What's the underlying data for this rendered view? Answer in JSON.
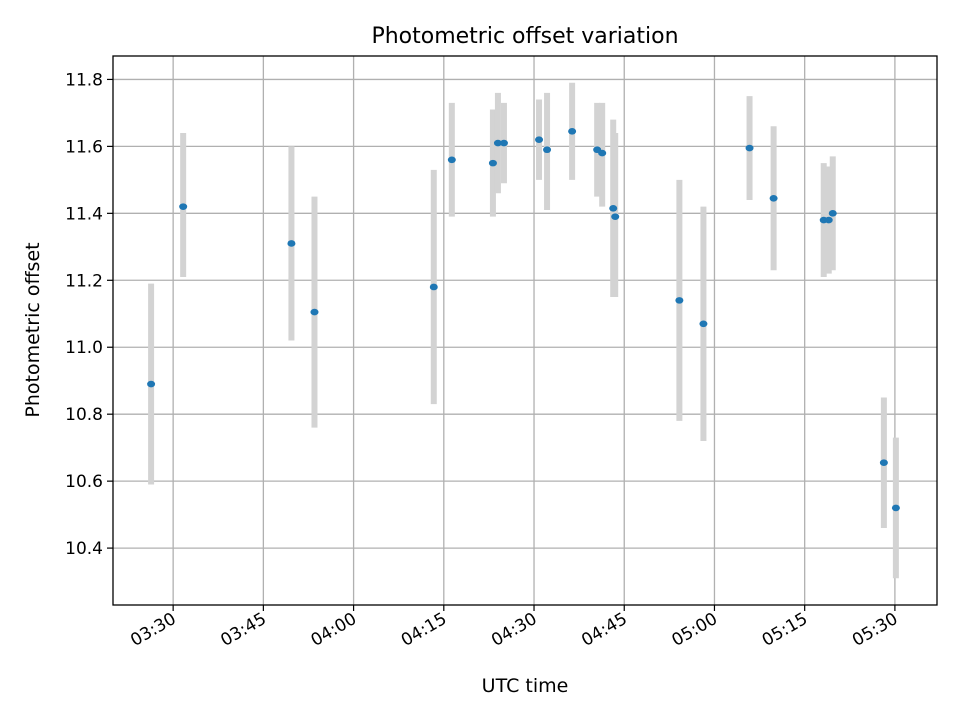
{
  "chart_data": {
    "type": "scatter",
    "title": "Photometric offset variation",
    "xlabel": "UTC time",
    "ylabel": "Photometric offset",
    "xlim": [
      "03:20",
      "05:37"
    ],
    "ylim": [
      10.23,
      11.87
    ],
    "x_ticks": [
      "03:30",
      "03:45",
      "04:00",
      "04:15",
      "04:30",
      "04:45",
      "05:00",
      "05:15",
      "05:30"
    ],
    "y_ticks": [
      "10.4",
      "10.6",
      "10.8",
      "11.0",
      "11.2",
      "11.4",
      "11.6",
      "11.8"
    ],
    "grid": true,
    "error_bar_color": "#d3d3d3",
    "marker_color": "#1f77b4",
    "points": [
      {
        "time": "03:26:20",
        "value": 10.89,
        "err_low": 10.59,
        "err_high": 11.19
      },
      {
        "time": "03:31:40",
        "value": 11.42,
        "err_low": 11.21,
        "err_high": 11.64
      },
      {
        "time": "03:49:40",
        "value": 11.31,
        "err_low": 11.02,
        "err_high": 11.6
      },
      {
        "time": "03:53:30",
        "value": 11.105,
        "err_low": 10.76,
        "err_high": 11.45
      },
      {
        "time": "04:13:20",
        "value": 11.18,
        "err_low": 10.83,
        "err_high": 11.53
      },
      {
        "time": "04:16:20",
        "value": 11.56,
        "err_low": 11.39,
        "err_high": 11.73
      },
      {
        "time": "04:23:10",
        "value": 11.55,
        "err_low": 11.39,
        "err_high": 11.71
      },
      {
        "time": "04:24:00",
        "value": 11.61,
        "err_low": 11.46,
        "err_high": 11.76
      },
      {
        "time": "04:25:00",
        "value": 11.61,
        "err_low": 11.49,
        "err_high": 11.73
      },
      {
        "time": "04:30:50",
        "value": 11.62,
        "err_low": 11.5,
        "err_high": 11.74
      },
      {
        "time": "04:32:10",
        "value": 11.59,
        "err_low": 11.41,
        "err_high": 11.76
      },
      {
        "time": "04:36:20",
        "value": 11.645,
        "err_low": 11.5,
        "err_high": 11.79
      },
      {
        "time": "04:40:30",
        "value": 11.59,
        "err_low": 11.45,
        "err_high": 11.73
      },
      {
        "time": "04:41:20",
        "value": 11.58,
        "err_low": 11.42,
        "err_high": 11.73
      },
      {
        "time": "04:43:10",
        "value": 11.415,
        "err_low": 11.15,
        "err_high": 11.68
      },
      {
        "time": "04:43:30",
        "value": 11.39,
        "err_low": 11.15,
        "err_high": 11.64
      },
      {
        "time": "04:54:10",
        "value": 11.14,
        "err_low": 10.78,
        "err_high": 11.5
      },
      {
        "time": "04:58:10",
        "value": 11.07,
        "err_low": 10.72,
        "err_high": 11.42
      },
      {
        "time": "05:05:50",
        "value": 11.595,
        "err_low": 11.44,
        "err_high": 11.75
      },
      {
        "time": "05:09:50",
        "value": 11.445,
        "err_low": 11.23,
        "err_high": 11.66
      },
      {
        "time": "05:18:10",
        "value": 11.38,
        "err_low": 11.21,
        "err_high": 11.55
      },
      {
        "time": "05:19:00",
        "value": 11.38,
        "err_low": 11.22,
        "err_high": 11.54
      },
      {
        "time": "05:19:40",
        "value": 11.4,
        "err_low": 11.23,
        "err_high": 11.57
      },
      {
        "time": "05:28:10",
        "value": 10.655,
        "err_low": 10.46,
        "err_high": 10.85
      },
      {
        "time": "05:30:10",
        "value": 10.52,
        "err_low": 10.31,
        "err_high": 10.73
      }
    ]
  }
}
